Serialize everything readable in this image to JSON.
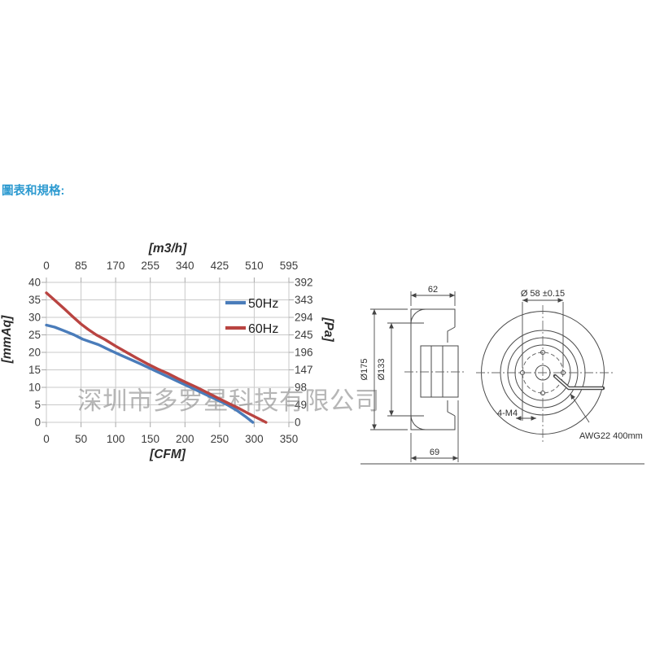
{
  "page": {
    "heading": "圖表和規格:",
    "heading_color": "#2D9AD0",
    "background": "#ffffff"
  },
  "watermark": {
    "text": "深圳市多罗星科技有限公司",
    "color": "#8a8a8a"
  },
  "chart_data": {
    "type": "line",
    "title": "",
    "grid": true,
    "legend_position": "upper-right-inside",
    "x_axis_bottom": {
      "label": "[CFM]",
      "range": [
        0,
        350
      ],
      "ticks": [
        0,
        50,
        100,
        150,
        200,
        250,
        300,
        350
      ]
    },
    "x_axis_top": {
      "label": "[m3/h]",
      "range": [
        0,
        595
      ],
      "ticks": [
        0,
        85,
        170,
        255,
        340,
        425,
        510,
        595
      ]
    },
    "y_axis_left": {
      "label": "[mmAq]",
      "range": [
        0,
        40
      ],
      "ticks": [
        40,
        35,
        30,
        25,
        20,
        15,
        10,
        5,
        0
      ]
    },
    "y_axis_right": {
      "label": "[Pa]",
      "range": [
        0,
        392
      ],
      "ticks": [
        392,
        343,
        294,
        245,
        196,
        147,
        98,
        49,
        0
      ]
    },
    "series": [
      {
        "name": "50Hz",
        "color": "#4A7CBA",
        "points": [
          [
            0,
            27.8
          ],
          [
            12,
            27.2
          ],
          [
            25,
            26.2
          ],
          [
            40,
            25.0
          ],
          [
            52,
            23.8
          ],
          [
            62,
            23.1
          ],
          [
            75,
            22.2
          ],
          [
            90,
            20.8
          ],
          [
            105,
            19.4
          ],
          [
            120,
            18.1
          ],
          [
            135,
            16.8
          ],
          [
            150,
            15.4
          ],
          [
            165,
            14.0
          ],
          [
            180,
            12.6
          ],
          [
            195,
            11.2
          ],
          [
            208,
            10.0
          ],
          [
            222,
            8.7
          ],
          [
            236,
            7.4
          ],
          [
            250,
            6.1
          ],
          [
            262,
            4.9
          ],
          [
            275,
            3.4
          ],
          [
            287,
            1.7
          ],
          [
            298,
            0
          ]
        ]
      },
      {
        "name": "60Hz",
        "color": "#B94441",
        "points": [
          [
            0,
            37.0
          ],
          [
            12,
            34.9
          ],
          [
            25,
            32.6
          ],
          [
            38,
            30.2
          ],
          [
            50,
            28.1
          ],
          [
            60,
            26.6
          ],
          [
            72,
            25.0
          ],
          [
            85,
            23.6
          ],
          [
            100,
            21.8
          ],
          [
            115,
            20.1
          ],
          [
            130,
            18.4
          ],
          [
            145,
            16.8
          ],
          [
            160,
            15.3
          ],
          [
            175,
            14.0
          ],
          [
            190,
            12.5
          ],
          [
            205,
            11.1
          ],
          [
            217,
            10.0
          ],
          [
            232,
            8.5
          ],
          [
            247,
            7.0
          ],
          [
            262,
            5.5
          ],
          [
            275,
            4.3
          ],
          [
            290,
            2.7
          ],
          [
            303,
            1.4
          ],
          [
            317,
            0
          ]
        ]
      }
    ]
  },
  "drawing": {
    "side_view": {
      "dim_width_top": "62",
      "dim_depth_bottom": "69",
      "dim_outer_diameter": "Ø175",
      "dim_inner_diameter": "Ø133"
    },
    "front_view": {
      "dim_bolt_circle": "Ø 58 ±0.15",
      "mounting_holes": "4-M4",
      "wire_label": "AWG22 400mm"
    }
  }
}
